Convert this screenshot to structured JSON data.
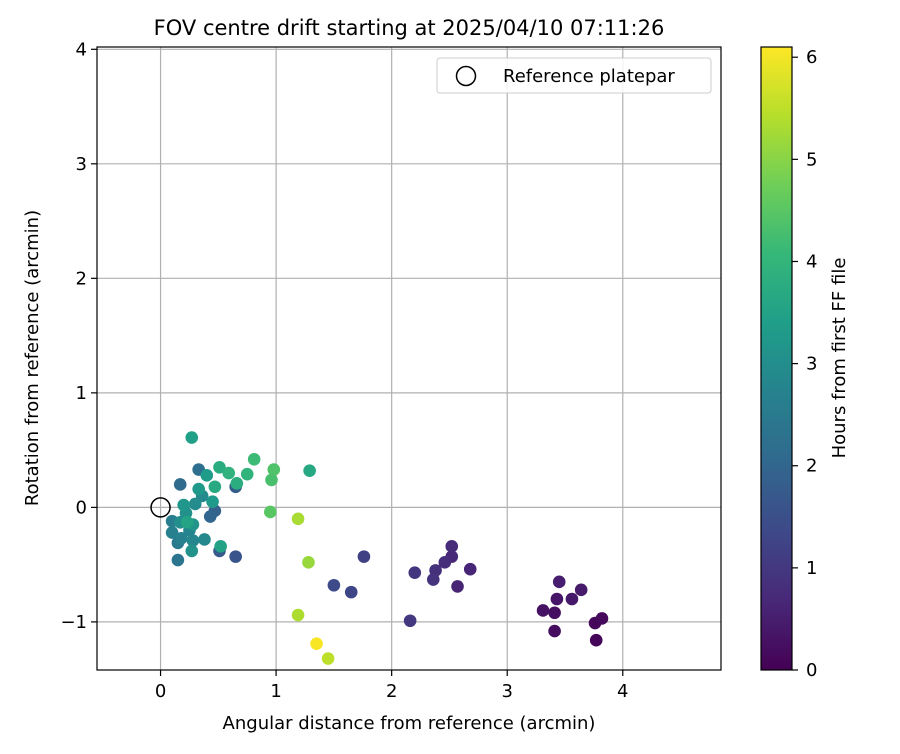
{
  "chart_data": {
    "type": "scatter",
    "title": "FOV centre drift starting at 2025/04/10 07:11:26",
    "xlabel": "Angular distance from reference (arcmin)",
    "ylabel": "Rotation from reference (arcmin)",
    "xlim": [
      -0.55,
      4.85
    ],
    "ylim": [
      -1.42,
      4.02
    ],
    "xticks": [
      0,
      1,
      2,
      3,
      4
    ],
    "yticks": [
      -1,
      0,
      1,
      2,
      3,
      4
    ],
    "grid": true,
    "legend": {
      "position": "top-right",
      "entries": [
        "Reference platepar"
      ]
    },
    "reference_point": {
      "x": 0,
      "y": 0,
      "label": "Reference platepar"
    },
    "colorbar": {
      "label": "Hours from first FF file",
      "range": [
        0,
        6.1
      ],
      "ticks": [
        0,
        1,
        2,
        3,
        4,
        5,
        6
      ],
      "colormap": "viridis"
    },
    "colormap_stops": [
      "#440154",
      "#482878",
      "#3e4989",
      "#31688e",
      "#26828e",
      "#1f9e89",
      "#35b779",
      "#6ece58",
      "#b5de2b",
      "#fde725"
    ],
    "points": [
      {
        "x": 3.77,
        "y": -1.16,
        "c": 0.05
      },
      {
        "x": 3.76,
        "y": -1.01,
        "c": 0.1
      },
      {
        "x": 3.82,
        "y": -0.97,
        "c": 0.15
      },
      {
        "x": 3.41,
        "y": -1.08,
        "c": 0.2
      },
      {
        "x": 3.41,
        "y": -0.92,
        "c": 0.25
      },
      {
        "x": 3.31,
        "y": -0.9,
        "c": 0.3
      },
      {
        "x": 3.43,
        "y": -0.8,
        "c": 0.35
      },
      {
        "x": 3.56,
        "y": -0.8,
        "c": 0.4
      },
      {
        "x": 3.64,
        "y": -0.72,
        "c": 0.45
      },
      {
        "x": 3.45,
        "y": -0.65,
        "c": 0.5
      },
      {
        "x": 2.57,
        "y": -0.69,
        "c": 0.6
      },
      {
        "x": 2.68,
        "y": -0.54,
        "c": 0.65
      },
      {
        "x": 2.52,
        "y": -0.43,
        "c": 0.7
      },
      {
        "x": 2.52,
        "y": -0.34,
        "c": 0.75
      },
      {
        "x": 2.46,
        "y": -0.48,
        "c": 0.8
      },
      {
        "x": 2.38,
        "y": -0.55,
        "c": 0.85
      },
      {
        "x": 2.36,
        "y": -0.63,
        "c": 0.9
      },
      {
        "x": 2.2,
        "y": -0.57,
        "c": 0.95
      },
      {
        "x": 2.16,
        "y": -0.99,
        "c": 1.0
      },
      {
        "x": 1.76,
        "y": -0.43,
        "c": 1.2
      },
      {
        "x": 1.65,
        "y": -0.74,
        "c": 1.3
      },
      {
        "x": 1.5,
        "y": -0.68,
        "c": 1.4
      },
      {
        "x": 0.65,
        "y": -0.43,
        "c": 1.6
      },
      {
        "x": 0.51,
        "y": -0.38,
        "c": 1.7
      },
      {
        "x": 0.65,
        "y": 0.18,
        "c": 1.8
      },
      {
        "x": 0.47,
        "y": -0.03,
        "c": 1.9
      },
      {
        "x": 0.43,
        "y": -0.08,
        "c": 2.0
      },
      {
        "x": 0.17,
        "y": 0.2,
        "c": 2.1
      },
      {
        "x": 0.33,
        "y": 0.33,
        "c": 2.2
      },
      {
        "x": 0.15,
        "y": -0.46,
        "c": 2.4
      },
      {
        "x": 0.15,
        "y": -0.31,
        "c": 2.5
      },
      {
        "x": 0.1,
        "y": -0.12,
        "c": 2.6
      },
      {
        "x": 0.1,
        "y": -0.22,
        "c": 2.65
      },
      {
        "x": 0.18,
        "y": -0.27,
        "c": 2.7
      },
      {
        "x": 0.25,
        "y": -0.2,
        "c": 2.75
      },
      {
        "x": 0.28,
        "y": -0.29,
        "c": 2.8
      },
      {
        "x": 0.38,
        "y": -0.28,
        "c": 2.85
      },
      {
        "x": 0.36,
        "y": 0.1,
        "c": 2.9
      },
      {
        "x": 0.3,
        "y": 0.03,
        "c": 2.95
      },
      {
        "x": 0.17,
        "y": -0.13,
        "c": 3.0
      },
      {
        "x": 0.22,
        "y": -0.05,
        "c": 3.05
      },
      {
        "x": 0.27,
        "y": -0.38,
        "c": 3.1
      },
      {
        "x": 0.28,
        "y": -0.15,
        "c": 3.15
      },
      {
        "x": 0.2,
        "y": 0.02,
        "c": 3.2
      },
      {
        "x": 0.33,
        "y": 0.16,
        "c": 3.25
      },
      {
        "x": 0.45,
        "y": 0.05,
        "c": 3.3
      },
      {
        "x": 0.4,
        "y": 0.28,
        "c": 3.35
      },
      {
        "x": 0.27,
        "y": 0.61,
        "c": 3.45
      },
      {
        "x": 0.52,
        "y": -0.34,
        "c": 3.5
      },
      {
        "x": 0.23,
        "y": -0.13,
        "c": 3.55
      },
      {
        "x": 0.47,
        "y": 0.18,
        "c": 3.7
      },
      {
        "x": 0.51,
        "y": 0.35,
        "c": 3.75
      },
      {
        "x": 0.66,
        "y": 0.21,
        "c": 3.8
      },
      {
        "x": 0.59,
        "y": 0.3,
        "c": 3.9
      },
      {
        "x": 0.75,
        "y": 0.29,
        "c": 3.95
      },
      {
        "x": 1.29,
        "y": 0.32,
        "c": 3.65
      },
      {
        "x": 0.81,
        "y": 0.42,
        "c": 4.15
      },
      {
        "x": 0.96,
        "y": 0.24,
        "c": 4.3
      },
      {
        "x": 0.98,
        "y": 0.33,
        "c": 4.4
      },
      {
        "x": 0.95,
        "y": -0.04,
        "c": 4.5
      },
      {
        "x": 1.28,
        "y": -0.48,
        "c": 5.15
      },
      {
        "x": 1.19,
        "y": -0.1,
        "c": 5.3
      },
      {
        "x": 1.19,
        "y": -0.94,
        "c": 5.35
      },
      {
        "x": 1.45,
        "y": -1.32,
        "c": 5.5
      },
      {
        "x": 1.35,
        "y": -1.19,
        "c": 6.05
      }
    ]
  }
}
